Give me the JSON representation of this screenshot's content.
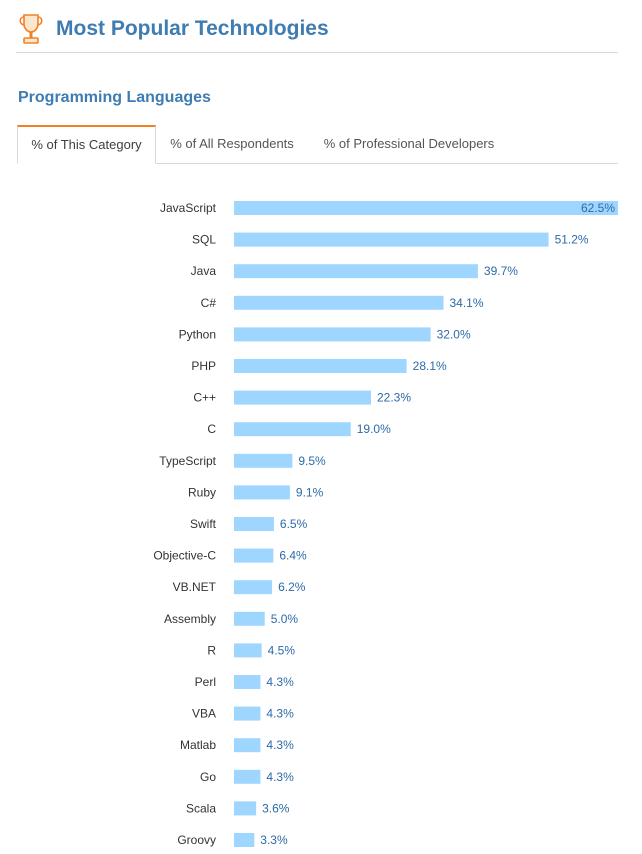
{
  "header": {
    "title": "Most Popular Technologies",
    "icon": "trophy-icon"
  },
  "section": {
    "title": "Programming Languages"
  },
  "tabs": [
    {
      "label": "% of This Category",
      "active": true
    },
    {
      "label": "% of All Respondents",
      "active": false
    },
    {
      "label": "% of Professional Developers",
      "active": false
    }
  ],
  "colors": {
    "bar": "#9fd6ff",
    "value_label": "#2c6aa8",
    "category_label": "#333333",
    "accent": "#f48024",
    "title": "#3e7cb1"
  },
  "chart_data": {
    "type": "bar",
    "orientation": "horizontal",
    "categories": [
      "JavaScript",
      "SQL",
      "Java",
      "C#",
      "Python",
      "PHP",
      "C++",
      "C",
      "TypeScript",
      "Ruby",
      "Swift",
      "Objective-C",
      "VB.NET",
      "Assembly",
      "R",
      "Perl",
      "VBA",
      "Matlab",
      "Go",
      "Scala",
      "Groovy"
    ],
    "values": [
      62.5,
      51.2,
      39.7,
      34.1,
      32.0,
      28.1,
      22.3,
      19.0,
      9.5,
      9.1,
      6.5,
      6.4,
      6.2,
      5.0,
      4.5,
      4.3,
      4.3,
      4.3,
      4.3,
      3.6,
      3.3
    ],
    "value_labels": [
      "62.5%",
      "51.2%",
      "39.7%",
      "34.1%",
      "32.0%",
      "28.1%",
      "22.3%",
      "19.0%",
      "9.5%",
      "9.1%",
      "6.5%",
      "6.4%",
      "6.2%",
      "5.0%",
      "4.5%",
      "4.3%",
      "4.3%",
      "4.3%",
      "4.3%",
      "3.6%",
      "3.3%"
    ],
    "xlim": [
      0,
      62.5
    ],
    "grid": false,
    "legend": "none"
  }
}
